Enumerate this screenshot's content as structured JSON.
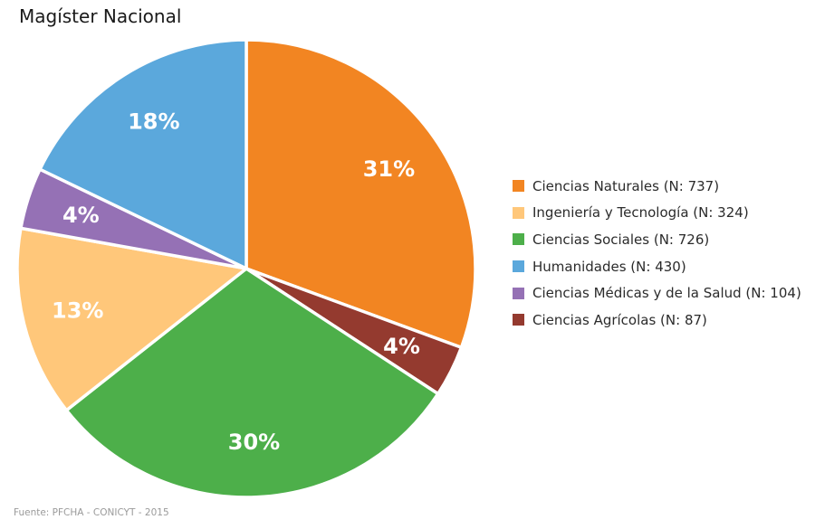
{
  "chart_data": {
    "type": "pie",
    "title": "Magíster Nacional",
    "source": "Fuente: PFCHA - CONICYT - 2015",
    "slices": [
      {
        "name": "Ciencias Naturales",
        "n": 737,
        "pct": 31,
        "legend": "Ciencias Naturales (N: 737)",
        "label": "31%",
        "color": "#F28522"
      },
      {
        "name": "Ciencias Agrícolas",
        "n": 87,
        "pct": 4,
        "legend": "Ciencias Agrícolas (N: 87)",
        "label": "4%",
        "color": "#943A2F"
      },
      {
        "name": "Ciencias Sociales",
        "n": 726,
        "pct": 30,
        "legend": "Ciencias Sociales (N: 726)",
        "label": "30%",
        "color": "#4DAF4A"
      },
      {
        "name": "Ingeniería y Tecnología",
        "n": 324,
        "pct": 13,
        "legend": "Ingeniería y Tecnología (N: 324)",
        "label": "13%",
        "color": "#FFC77A"
      },
      {
        "name": "Ciencias Médicas y de la Salud",
        "n": 104,
        "pct": 4,
        "legend": "Ciencias Médicas y de la Salud (N: 104)",
        "label": "4%",
        "color": "#9571B5"
      },
      {
        "name": "Humanidades",
        "n": 430,
        "pct": 18,
        "legend": "Humanidades (N: 430)",
        "label": "18%",
        "color": "#5BA8DC"
      }
    ],
    "legend_order": [
      0,
      3,
      2,
      5,
      4,
      1
    ],
    "legend_position": "right"
  }
}
